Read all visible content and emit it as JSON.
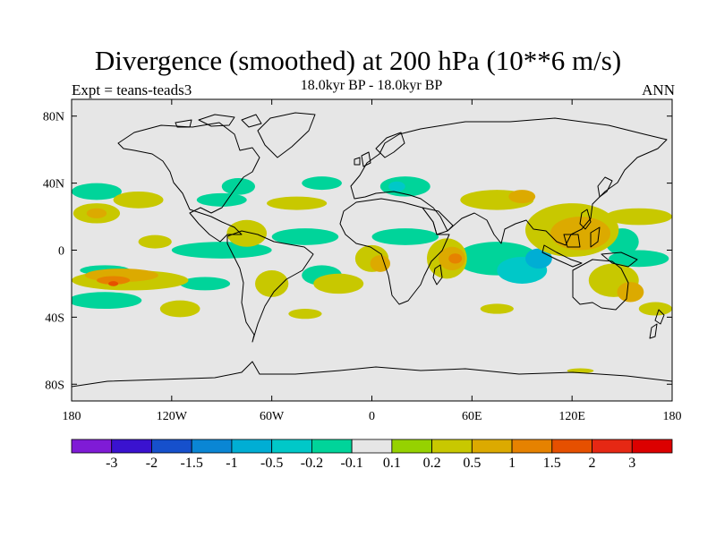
{
  "title": "Divergence (smoothed) at 200 hPa (10**6 m/s)",
  "experiment": "Expt = teans-teads3",
  "period": "18.0kyr BP - 18.0kyr BP",
  "season": "ANN",
  "map": {
    "lat_ticks": [
      {
        "value": 80,
        "label": "80N"
      },
      {
        "value": 40,
        "label": "40N"
      },
      {
        "value": 0,
        "label": "0"
      },
      {
        "value": -40,
        "label": "40S"
      },
      {
        "value": -80,
        "label": "80S"
      }
    ],
    "lon_ticks": [
      {
        "value": -180,
        "label": "180"
      },
      {
        "value": -120,
        "label": "120W"
      },
      {
        "value": -60,
        "label": "60W"
      },
      {
        "value": 0,
        "label": "0"
      },
      {
        "value": 60,
        "label": "60E"
      },
      {
        "value": 120,
        "label": "120E"
      },
      {
        "value": 180,
        "label": "180"
      }
    ],
    "lat_range": [
      -90,
      90
    ],
    "lon_range": [
      -180,
      180
    ],
    "background_color": "#e6e6e6"
  },
  "colorbar": {
    "labels": [
      "-3",
      "-2",
      "-1.5",
      "-1",
      "-0.5",
      "-0.2",
      "-0.1",
      "0.1",
      "0.2",
      "0.5",
      "1",
      "1.5",
      "2",
      "3"
    ],
    "colors": [
      "#7f1bd6",
      "#3a12cf",
      "#1650cc",
      "#0a86d4",
      "#00aed4",
      "#00c8c8",
      "#00d49a",
      "#e6e6e6",
      "#96d200",
      "#c8c800",
      "#dcaa00",
      "#e68200",
      "#e65000",
      "#e62814",
      "#dc0000"
    ]
  },
  "fields": {
    "positive": [
      {
        "lon": -165,
        "lat": 22,
        "rlon": 14,
        "rlat": 6,
        "level": "0.2"
      },
      {
        "lon": -140,
        "lat": 30,
        "rlon": 15,
        "rlat": 5,
        "level": "0.2"
      },
      {
        "lon": -165,
        "lat": 22,
        "rlon": 6,
        "rlat": 3,
        "level": "0.5"
      },
      {
        "lon": -75,
        "lat": 10,
        "rlon": 12,
        "rlat": 8,
        "level": "0.2"
      },
      {
        "lon": -45,
        "lat": 28,
        "rlon": 18,
        "rlat": 4,
        "level": "0.2"
      },
      {
        "lon": -60,
        "lat": -20,
        "rlon": 10,
        "rlat": 8,
        "level": "0.2"
      },
      {
        "lon": -130,
        "lat": 5,
        "rlon": 10,
        "rlat": 4,
        "level": "0.2"
      },
      {
        "lon": 0,
        "lat": -5,
        "rlon": 10,
        "rlat": 8,
        "level": "0.2"
      },
      {
        "lon": 5,
        "lat": -8,
        "rlon": 6,
        "rlat": 5,
        "level": "0.5"
      },
      {
        "lon": 45,
        "lat": -5,
        "rlon": 12,
        "rlat": 12,
        "level": "0.2"
      },
      {
        "lon": 48,
        "lat": -5,
        "rlon": 8,
        "rlat": 7,
        "level": "0.5"
      },
      {
        "lon": 50,
        "lat": -5,
        "rlon": 4,
        "rlat": 3,
        "level": "1"
      },
      {
        "lon": 75,
        "lat": 30,
        "rlon": 22,
        "rlat": 6,
        "level": "0.2"
      },
      {
        "lon": 90,
        "lat": 32,
        "rlon": 8,
        "rlat": 4,
        "level": "0.5"
      },
      {
        "lon": 120,
        "lat": 12,
        "rlon": 28,
        "rlat": 16,
        "level": "0.2"
      },
      {
        "lon": 125,
        "lat": 10,
        "rlon": 18,
        "rlat": 10,
        "level": "0.5"
      },
      {
        "lon": 145,
        "lat": -18,
        "rlon": 15,
        "rlat": 10,
        "level": "0.2"
      },
      {
        "lon": 155,
        "lat": -25,
        "rlon": 8,
        "rlat": 6,
        "level": "0.5"
      },
      {
        "lon": -145,
        "lat": -18,
        "rlon": 35,
        "rlat": 6,
        "level": "0.2"
      },
      {
        "lon": -150,
        "lat": -15,
        "rlon": 22,
        "rlat": 4,
        "level": "0.5"
      },
      {
        "lon": -155,
        "lat": -18,
        "rlon": 10,
        "rlat": 2.5,
        "level": "1"
      },
      {
        "lon": -155,
        "lat": -20,
        "rlon": 3,
        "rlat": 1.5,
        "level": "1.5"
      },
      {
        "lon": -115,
        "lat": -35,
        "rlon": 12,
        "rlat": 5,
        "level": "0.2"
      },
      {
        "lon": -20,
        "lat": -20,
        "rlon": 15,
        "rlat": 6,
        "level": "0.2"
      },
      {
        "lon": 160,
        "lat": 20,
        "rlon": 20,
        "rlat": 5,
        "level": "0.2"
      },
      {
        "lon": 170,
        "lat": -35,
        "rlon": 10,
        "rlat": 4,
        "level": "0.2"
      },
      {
        "lon": 125,
        "lat": -72,
        "rlon": 8,
        "rlat": 1.5,
        "level": "0.2"
      },
      {
        "lon": -40,
        "lat": -38,
        "rlon": 10,
        "rlat": 3,
        "level": "0.2"
      },
      {
        "lon": 75,
        "lat": -35,
        "rlon": 10,
        "rlat": 3,
        "level": "0.2"
      }
    ],
    "negative": [
      {
        "lon": -165,
        "lat": 35,
        "rlon": 15,
        "rlat": 5,
        "level": "-0.1"
      },
      {
        "lon": -80,
        "lat": 38,
        "rlon": 10,
        "rlat": 5,
        "level": "-0.1"
      },
      {
        "lon": -30,
        "lat": 40,
        "rlon": 12,
        "rlat": 4,
        "level": "-0.1"
      },
      {
        "lon": 20,
        "lat": 38,
        "rlon": 15,
        "rlat": 6,
        "level": "-0.1"
      },
      {
        "lon": 15,
        "lat": 38,
        "rlon": 5,
        "rlat": 3,
        "level": "-0.2"
      },
      {
        "lon": -90,
        "lat": 0,
        "rlon": 30,
        "rlat": 5,
        "level": "-0.1"
      },
      {
        "lon": -40,
        "lat": 8,
        "rlon": 20,
        "rlat": 5,
        "level": "-0.1"
      },
      {
        "lon": 20,
        "lat": 8,
        "rlon": 20,
        "rlat": 5,
        "level": "-0.1"
      },
      {
        "lon": 75,
        "lat": -5,
        "rlon": 25,
        "rlat": 10,
        "level": "-0.1"
      },
      {
        "lon": 90,
        "lat": -12,
        "rlon": 15,
        "rlat": 8,
        "level": "-0.2"
      },
      {
        "lon": 100,
        "lat": -5,
        "rlon": 8,
        "rlat": 6,
        "level": "-0.5"
      },
      {
        "lon": 150,
        "lat": 5,
        "rlon": 10,
        "rlat": 8,
        "level": "-0.1"
      },
      {
        "lon": -160,
        "lat": -30,
        "rlon": 22,
        "rlat": 5,
        "level": "-0.1"
      },
      {
        "lon": -160,
        "lat": -12,
        "rlon": 15,
        "rlat": 3,
        "level": "-0.1"
      },
      {
        "lon": -100,
        "lat": -20,
        "rlon": 15,
        "rlat": 4,
        "level": "-0.1"
      },
      {
        "lon": -90,
        "lat": 30,
        "rlon": 15,
        "rlat": 4,
        "level": "-0.1"
      },
      {
        "lon": 160,
        "lat": -5,
        "rlon": 18,
        "rlat": 5,
        "level": "-0.1"
      },
      {
        "lon": -30,
        "lat": -15,
        "rlon": 12,
        "rlat": 6,
        "level": "-0.1"
      }
    ]
  }
}
